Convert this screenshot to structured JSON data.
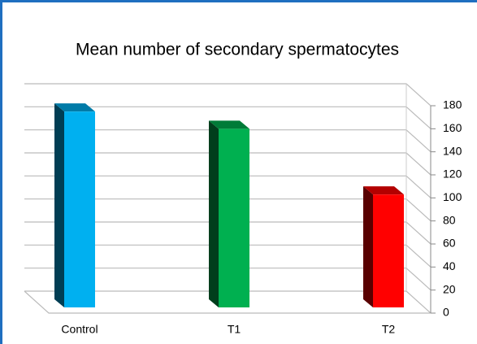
{
  "chart_data": {
    "type": "bar3d",
    "title": "Mean number of secondary spermatocytes",
    "categories": [
      "Control",
      "T1",
      "T2"
    ],
    "values": [
      170,
      155,
      98
    ],
    "colors": [
      "#00b0f0",
      "#00b050",
      "#ff0000"
    ],
    "ylim": [
      0,
      180
    ],
    "yticks": [
      0,
      20,
      40,
      60,
      80,
      100,
      120,
      140,
      160,
      180
    ],
    "grid": true
  }
}
